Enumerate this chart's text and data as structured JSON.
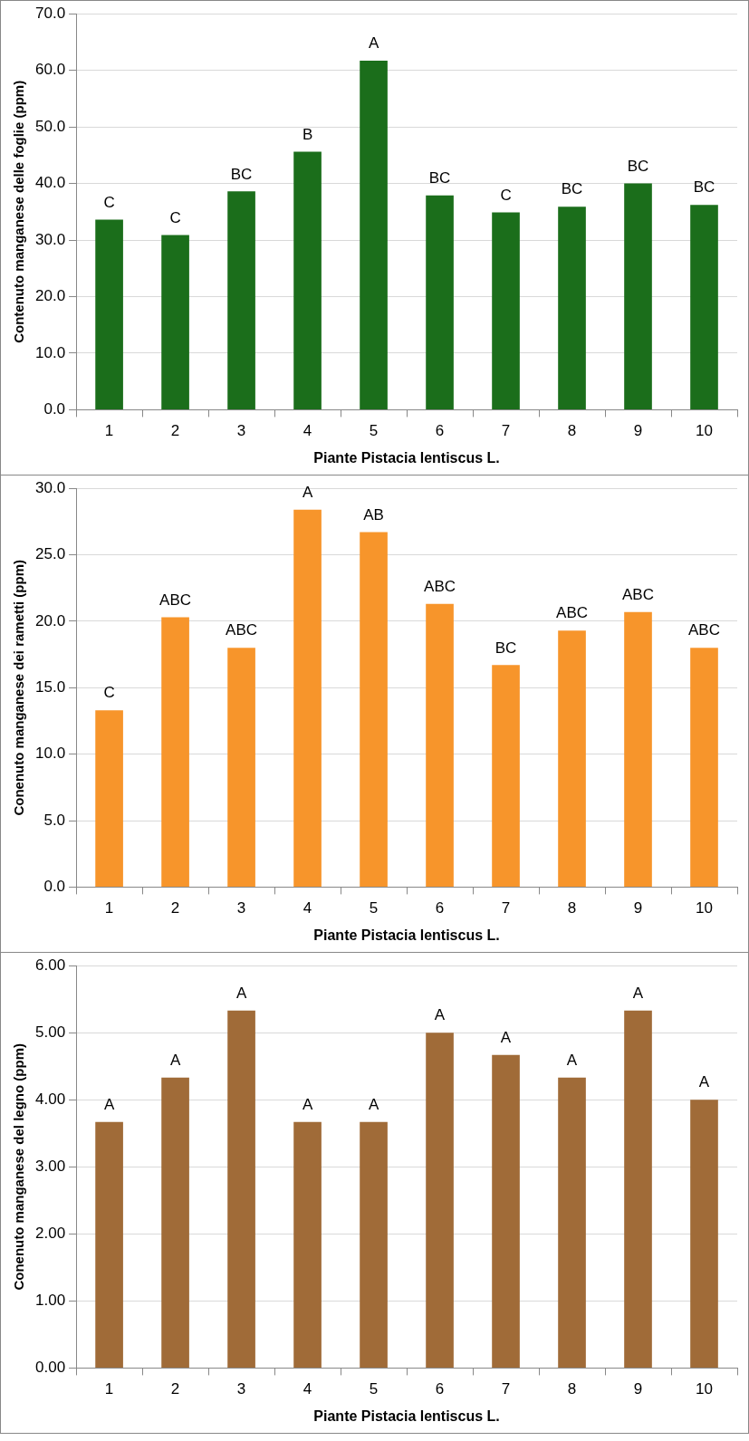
{
  "chart_data": [
    {
      "type": "bar",
      "xlabel": "Piante Pistacia lentiscus L.",
      "ylabel": "Contenuto manganese delle foglie (ppm)",
      "categories": [
        "1",
        "2",
        "3",
        "4",
        "5",
        "6",
        "7",
        "8",
        "9",
        "10"
      ],
      "series": [
        {
          "color": "#1b6e1b",
          "values": [
            33.6,
            30.9,
            38.6,
            45.6,
            61.7,
            37.9,
            34.9,
            35.9,
            40.0,
            36.2
          ]
        }
      ],
      "ylim": [
        0,
        70
      ],
      "yticks": [
        {
          "value": 0,
          "label": "0.0"
        },
        {
          "value": 10,
          "label": "10.0"
        },
        {
          "value": 20,
          "label": "20.0"
        },
        {
          "value": 30,
          "label": "30.0"
        },
        {
          "value": 40,
          "label": "40.0"
        },
        {
          "value": 50,
          "label": "50.0"
        },
        {
          "value": 60,
          "label": "60.0"
        },
        {
          "value": 70,
          "label": "70.0"
        }
      ],
      "grid": "y",
      "legend": false,
      "annotations": [
        {
          "text": "C",
          "x": "1",
          "y": 33.6
        },
        {
          "text": "C",
          "x": "2",
          "y": 30.9
        },
        {
          "text": "BC",
          "x": "3",
          "y": 38.6
        },
        {
          "text": "B",
          "x": "4",
          "y": 45.6
        },
        {
          "text": "A",
          "x": "5",
          "y": 61.7
        },
        {
          "text": "BC",
          "x": "6",
          "y": 37.9
        },
        {
          "text": "C",
          "x": "7",
          "y": 34.9
        },
        {
          "text": "BC",
          "x": "8",
          "y": 35.9
        },
        {
          "text": "BC",
          "x": "9",
          "y": 40.0
        },
        {
          "text": "BC",
          "x": "10",
          "y": 36.2
        }
      ]
    },
    {
      "type": "bar",
      "xlabel": "Piante Pistacia lentiscus L.",
      "ylabel": "Conenuto manganese dei rametti (ppm)",
      "categories": [
        "1",
        "2",
        "3",
        "4",
        "5",
        "6",
        "7",
        "8",
        "9",
        "10"
      ],
      "series": [
        {
          "color": "#f7952b",
          "values": [
            13.3,
            20.3,
            18.0,
            28.4,
            26.7,
            21.3,
            16.7,
            19.3,
            20.7,
            18.0
          ]
        }
      ],
      "ylim": [
        0,
        30
      ],
      "yticks": [
        {
          "value": 0,
          "label": "0.0"
        },
        {
          "value": 5,
          "label": "5.0"
        },
        {
          "value": 10,
          "label": "10.0"
        },
        {
          "value": 15,
          "label": "15.0"
        },
        {
          "value": 20,
          "label": "20.0"
        },
        {
          "value": 25,
          "label": "25.0"
        },
        {
          "value": 30,
          "label": "30.0"
        }
      ],
      "grid": "y",
      "legend": false,
      "annotations": [
        {
          "text": "C",
          "x": "1",
          "y": 13.3
        },
        {
          "text": "ABC",
          "x": "2",
          "y": 20.3
        },
        {
          "text": "ABC",
          "x": "3",
          "y": 18.0
        },
        {
          "text": "A",
          "x": "4",
          "y": 28.4
        },
        {
          "text": "AB",
          "x": "5",
          "y": 26.7
        },
        {
          "text": "ABC",
          "x": "6",
          "y": 21.3
        },
        {
          "text": "BC",
          "x": "7",
          "y": 16.7
        },
        {
          "text": "ABC",
          "x": "8",
          "y": 19.3
        },
        {
          "text": "ABC",
          "x": "9",
          "y": 20.7
        },
        {
          "text": "ABC",
          "x": "10",
          "y": 18.0
        }
      ]
    },
    {
      "type": "bar",
      "xlabel": "Piante Pistacia lentiscus L.",
      "ylabel": "Conenuto manganese del legno (ppm)",
      "categories": [
        "1",
        "2",
        "3",
        "4",
        "5",
        "6",
        "7",
        "8",
        "9",
        "10"
      ],
      "series": [
        {
          "color": "#a06b38",
          "values": [
            3.67,
            4.33,
            5.33,
            3.67,
            3.67,
            5.0,
            4.67,
            4.33,
            5.33,
            4.0
          ]
        }
      ],
      "ylim": [
        0,
        6
      ],
      "yticks": [
        {
          "value": 0,
          "label": "0.00"
        },
        {
          "value": 1,
          "label": "1.00"
        },
        {
          "value": 2,
          "label": "2.00"
        },
        {
          "value": 3,
          "label": "3.00"
        },
        {
          "value": 4,
          "label": "4.00"
        },
        {
          "value": 5,
          "label": "5.00"
        },
        {
          "value": 6,
          "label": "6.00"
        }
      ],
      "grid": "y",
      "legend": false,
      "annotations": [
        {
          "text": "A",
          "x": "1",
          "y": 3.67
        },
        {
          "text": "A",
          "x": "2",
          "y": 4.33
        },
        {
          "text": "A",
          "x": "3",
          "y": 5.33
        },
        {
          "text": "A",
          "x": "4",
          "y": 3.67
        },
        {
          "text": "A",
          "x": "5",
          "y": 3.67
        },
        {
          "text": "A",
          "x": "6",
          "y": 5.0
        },
        {
          "text": "A",
          "x": "7",
          "y": 4.67
        },
        {
          "text": "A",
          "x": "8",
          "y": 4.33
        },
        {
          "text": "A",
          "x": "9",
          "y": 5.33
        },
        {
          "text": "A",
          "x": "10",
          "y": 4.0
        }
      ]
    }
  ]
}
